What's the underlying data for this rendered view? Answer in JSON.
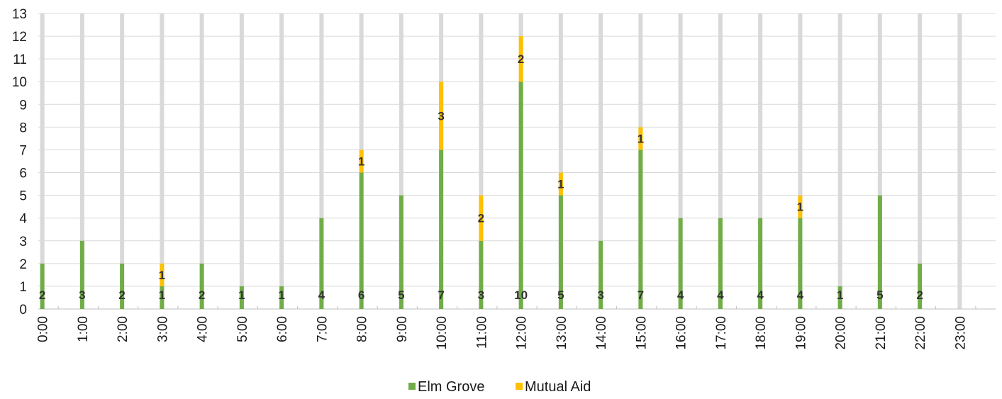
{
  "chart_data": {
    "type": "bar",
    "stacked": true,
    "categories": [
      "0:00",
      "1:00",
      "2:00",
      "3:00",
      "4:00",
      "5:00",
      "6:00",
      "7:00",
      "8:00",
      "9:00",
      "10:00",
      "11:00",
      "12:00",
      "13:00",
      "14:00",
      "15:00",
      "16:00",
      "17:00",
      "18:00",
      "19:00",
      "20:00",
      "21:00",
      "22:00",
      "23:00"
    ],
    "series": [
      {
        "name": "Elm Grove",
        "color": "#70AD47",
        "values": [
          2,
          3,
          2,
          1,
          2,
          1,
          1,
          4,
          6,
          5,
          7,
          3,
          10,
          5,
          3,
          7,
          4,
          4,
          4,
          4,
          1,
          5,
          2,
          0
        ]
      },
      {
        "name": "Mutual Aid",
        "color": "#FFC000",
        "values": [
          0,
          0,
          0,
          1,
          0,
          0,
          0,
          0,
          1,
          0,
          3,
          2,
          2,
          1,
          0,
          1,
          0,
          0,
          0,
          1,
          0,
          0,
          0,
          0
        ]
      }
    ],
    "ylim": [
      0,
      13
    ],
    "yticks": [
      "0",
      "1",
      "2",
      "3",
      "4",
      "5",
      "6",
      "7",
      "8",
      "9",
      "10",
      "11",
      "12",
      "13"
    ],
    "grid": true,
    "legend_position": "bottom",
    "xlabel": "",
    "ylabel": ""
  },
  "colors": {
    "gridline": "#D9D9D9",
    "column_band": "#D9D9D9",
    "axis": "#BFBFBF",
    "label_text": "#333333"
  }
}
